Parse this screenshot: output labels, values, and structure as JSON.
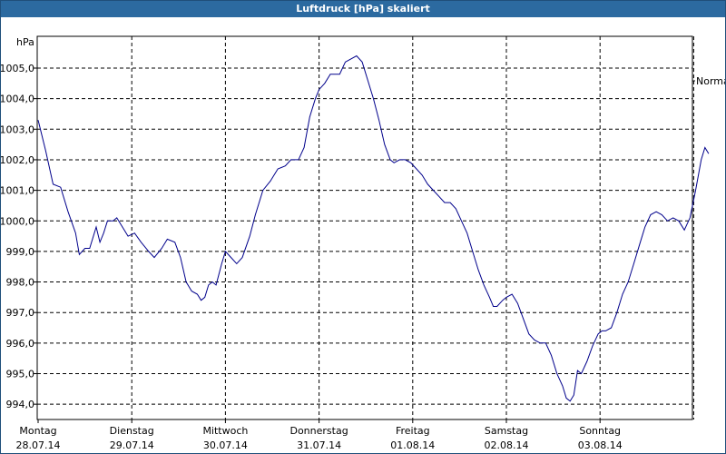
{
  "window": {
    "title": "Luftdruck [hPa] skaliert"
  },
  "chart_data": {
    "type": "line",
    "title": "Luftdruck [hPa] skaliert",
    "ylabel": "hPa",
    "ylim": [
      993.6,
      1005.9
    ],
    "yticks": [
      994.0,
      995.0,
      996.0,
      997.0,
      998.0,
      999.0,
      1000.0,
      1001.0,
      1002.0,
      1003.0,
      1004.0,
      1005.0
    ],
    "ytick_labels": [
      "994,0",
      "995,0",
      "996,0",
      "997,0",
      "998,0",
      "999,0",
      "1000,0",
      "1001,0",
      "1002,0",
      "1003,0",
      "1004,0",
      "1005,0"
    ],
    "xlim": [
      0,
      7
    ],
    "x_unit": "days",
    "x_ticks": [
      {
        "x": 0,
        "day": "Montag",
        "date": "28.07.14"
      },
      {
        "x": 1,
        "day": "Dienstag",
        "date": "29.07.14"
      },
      {
        "x": 2,
        "day": "Mittwoch",
        "date": "30.07.14"
      },
      {
        "x": 3,
        "day": "Donnerstag",
        "date": "31.07.14"
      },
      {
        "x": 4,
        "day": "Freitag",
        "date": "01.08.14"
      },
      {
        "x": 5,
        "day": "Samstag",
        "date": "02.08.14"
      },
      {
        "x": 6,
        "day": "Sonntag",
        "date": "03.08.14"
      }
    ],
    "grid": true,
    "legend": "right",
    "series": [
      {
        "name": "Normal",
        "color": "#00008b",
        "points": [
          [
            0.0,
            1003.3
          ],
          [
            0.08,
            1002.3
          ],
          [
            0.16,
            1001.2
          ],
          [
            0.24,
            1001.1
          ],
          [
            0.32,
            1000.3
          ],
          [
            0.4,
            999.6
          ],
          [
            0.44,
            998.9
          ],
          [
            0.5,
            999.1
          ],
          [
            0.55,
            999.1
          ],
          [
            0.62,
            999.8
          ],
          [
            0.66,
            999.3
          ],
          [
            0.7,
            999.6
          ],
          [
            0.74,
            1000.0
          ],
          [
            0.8,
            1000.0
          ],
          [
            0.84,
            1000.1
          ],
          [
            0.9,
            999.8
          ],
          [
            0.96,
            999.5
          ],
          [
            1.03,
            999.6
          ],
          [
            1.1,
            999.3
          ],
          [
            1.18,
            999.0
          ],
          [
            1.24,
            998.8
          ],
          [
            1.32,
            999.1
          ],
          [
            1.38,
            999.4
          ],
          [
            1.46,
            999.3
          ],
          [
            1.52,
            998.8
          ],
          [
            1.58,
            998.0
          ],
          [
            1.64,
            997.7
          ],
          [
            1.7,
            997.6
          ],
          [
            1.74,
            997.4
          ],
          [
            1.78,
            997.5
          ],
          [
            1.82,
            997.9
          ],
          [
            1.86,
            998.0
          ],
          [
            1.9,
            997.9
          ],
          [
            1.96,
            998.6
          ],
          [
            2.0,
            999.0
          ],
          [
            2.06,
            998.8
          ],
          [
            2.12,
            998.6
          ],
          [
            2.18,
            998.8
          ],
          [
            2.26,
            999.5
          ],
          [
            2.32,
            1000.2
          ],
          [
            2.4,
            1001.0
          ],
          [
            2.48,
            1001.3
          ],
          [
            2.56,
            1001.7
          ],
          [
            2.64,
            1001.8
          ],
          [
            2.7,
            1002.0
          ],
          [
            2.78,
            1002.0
          ],
          [
            2.84,
            1002.4
          ],
          [
            2.9,
            1003.4
          ],
          [
            2.96,
            1004.0
          ],
          [
            3.0,
            1004.3
          ],
          [
            3.06,
            1004.5
          ],
          [
            3.12,
            1004.8
          ],
          [
            3.18,
            1004.8
          ],
          [
            3.22,
            1004.8
          ],
          [
            3.28,
            1005.2
          ],
          [
            3.34,
            1005.3
          ],
          [
            3.4,
            1005.4
          ],
          [
            3.46,
            1005.2
          ],
          [
            3.52,
            1004.6
          ],
          [
            3.58,
            1004.0
          ],
          [
            3.64,
            1003.3
          ],
          [
            3.7,
            1002.5
          ],
          [
            3.76,
            1002.0
          ],
          [
            3.8,
            1001.9
          ],
          [
            3.86,
            1002.0
          ],
          [
            3.92,
            1002.0
          ],
          [
            3.98,
            1001.9
          ],
          [
            4.04,
            1001.7
          ],
          [
            4.1,
            1001.5
          ],
          [
            4.16,
            1001.2
          ],
          [
            4.22,
            1001.0
          ],
          [
            4.28,
            1000.8
          ],
          [
            4.34,
            1000.6
          ],
          [
            4.4,
            1000.6
          ],
          [
            4.46,
            1000.4
          ],
          [
            4.52,
            1000.0
          ],
          [
            4.58,
            999.6
          ],
          [
            4.64,
            999.0
          ],
          [
            4.7,
            998.4
          ],
          [
            4.76,
            997.9
          ],
          [
            4.82,
            997.5
          ],
          [
            4.86,
            997.2
          ],
          [
            4.9,
            997.2
          ],
          [
            4.96,
            997.4
          ],
          [
            5.0,
            997.5
          ],
          [
            5.06,
            997.6
          ],
          [
            5.12,
            997.3
          ],
          [
            5.18,
            996.8
          ],
          [
            5.24,
            996.3
          ],
          [
            5.3,
            996.1
          ],
          [
            5.36,
            996.0
          ],
          [
            5.42,
            996.0
          ],
          [
            5.48,
            995.6
          ],
          [
            5.54,
            995.0
          ],
          [
            5.6,
            994.6
          ],
          [
            5.64,
            994.2
          ],
          [
            5.68,
            994.1
          ],
          [
            5.72,
            994.3
          ],
          [
            5.76,
            995.1
          ],
          [
            5.8,
            995.0
          ],
          [
            5.86,
            995.4
          ],
          [
            5.92,
            995.9
          ],
          [
            5.98,
            996.3
          ],
          [
            6.02,
            996.4
          ],
          [
            6.06,
            996.4
          ],
          [
            6.12,
            996.5
          ],
          [
            6.18,
            997.0
          ],
          [
            6.24,
            997.6
          ],
          [
            6.3,
            998.0
          ],
          [
            6.36,
            998.6
          ],
          [
            6.42,
            999.2
          ],
          [
            6.48,
            999.8
          ],
          [
            6.54,
            1000.2
          ],
          [
            6.6,
            1000.3
          ],
          [
            6.66,
            1000.2
          ],
          [
            6.72,
            1000.0
          ],
          [
            6.78,
            1000.1
          ],
          [
            6.84,
            1000.0
          ],
          [
            6.9,
            999.7
          ],
          [
            6.96,
            1000.1
          ],
          [
            7.02,
            1001.0
          ],
          [
            7.08,
            1002.0
          ],
          [
            7.12,
            1002.4
          ],
          [
            7.16,
            1002.2
          ]
        ]
      }
    ]
  }
}
